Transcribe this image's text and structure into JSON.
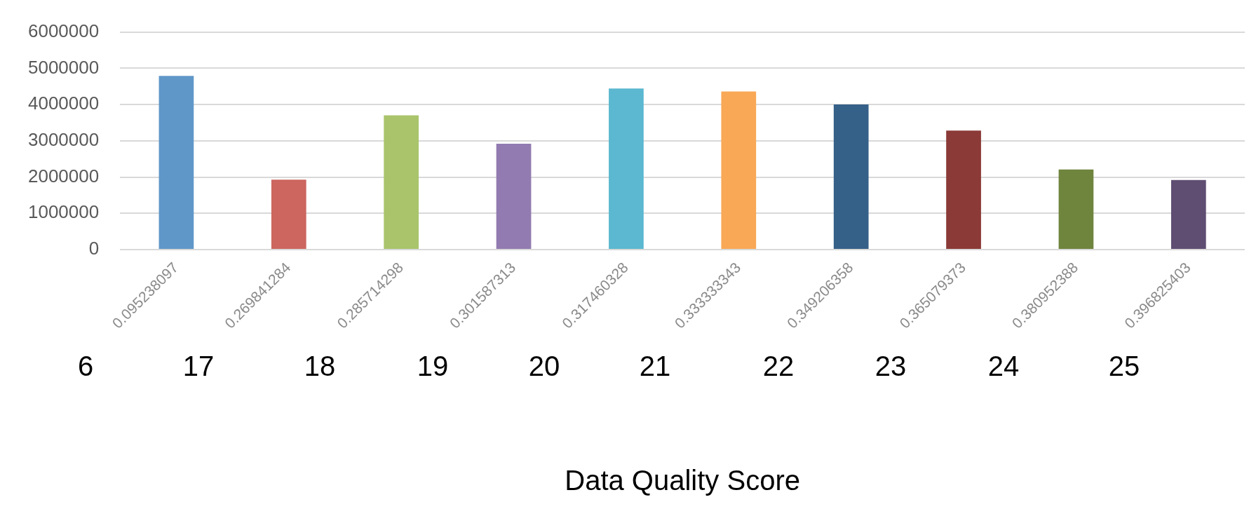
{
  "chart_data": {
    "type": "bar",
    "xlabel": "Data Quality Score",
    "categories": [
      "0.095238097",
      "0.269841284",
      "0.285714298",
      "0.301587313",
      "0.317460328",
      "0.333333343",
      "0.349206358",
      "0.365079373",
      "0.380952388",
      "0.396825403"
    ],
    "values": [
      4790000,
      1930000,
      3700000,
      2920000,
      4440000,
      4360000,
      4000000,
      3280000,
      2210000,
      1920000
    ],
    "colors": [
      "#6097c9",
      "#cc665f",
      "#a9c46b",
      "#927bb0",
      "#5bb8d0",
      "#f9a856",
      "#356088",
      "#8b3a37",
      "#6f843d",
      "#5f4d72"
    ],
    "ylim": [
      0,
      6000000
    ],
    "yticks": [
      0,
      1000000,
      2000000,
      3000000,
      4000000,
      5000000,
      6000000
    ],
    "grid": "y",
    "legend": false,
    "annotations": [
      "6",
      "17",
      "18",
      "19",
      "20",
      "21",
      "22",
      "23",
      "24",
      "25"
    ]
  }
}
